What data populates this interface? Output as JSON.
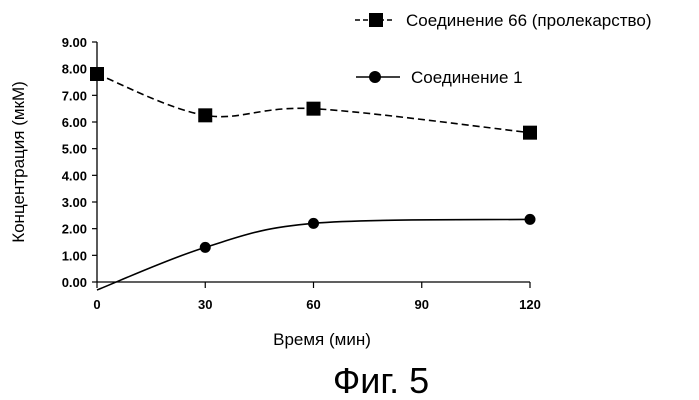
{
  "chart_data": {
    "type": "line",
    "x": [
      0,
      30,
      60,
      120
    ],
    "xticks": [
      "0",
      "30",
      "60",
      "90",
      "120"
    ],
    "yticks": [
      "0.00",
      "1.00",
      "2.00",
      "3.00",
      "4.00",
      "5.00",
      "6.00",
      "7.00",
      "8.00",
      "9.00"
    ],
    "ylim": [
      0,
      9
    ],
    "xlim": [
      0,
      120
    ],
    "xlabel": "Время (мин)",
    "ylabel": "Концентрация (мкМ)",
    "legend_position": "top-right",
    "grid": false,
    "series": [
      {
        "name": "Соединение 66 (пролекарство)",
        "values": [
          7.8,
          6.25,
          6.5,
          5.6
        ],
        "marker": "square",
        "style": "dashed",
        "color": "#000000"
      },
      {
        "name": "Соединение 1",
        "values": [
          -0.3,
          1.3,
          2.2,
          2.35
        ],
        "marker": "circle",
        "style": "solid",
        "color": "#000000"
      }
    ]
  },
  "caption": "Фиг. 5"
}
